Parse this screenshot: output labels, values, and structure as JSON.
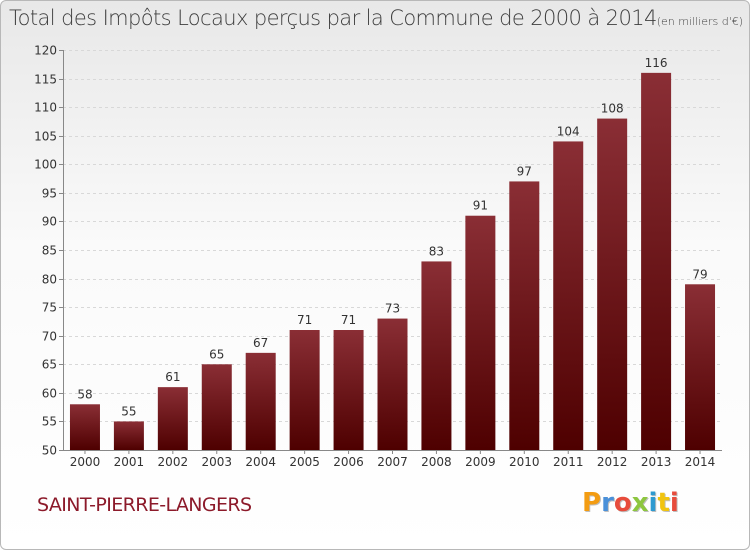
{
  "chart_data": {
    "type": "bar",
    "title": "Total des Impôts Locaux perçus par la Commune de 2000 à 2014",
    "unit_label": "(en milliers d'€)",
    "categories": [
      "2000",
      "2001",
      "2002",
      "2003",
      "2004",
      "2005",
      "2006",
      "2007",
      "2008",
      "2009",
      "2010",
      "2011",
      "2012",
      "2013",
      "2014"
    ],
    "values": [
      58,
      55,
      61,
      65,
      67,
      71,
      71,
      73,
      83,
      91,
      97,
      104,
      108,
      116,
      79
    ],
    "ylim": [
      50,
      120
    ],
    "yticks": [
      50,
      55,
      60,
      65,
      70,
      75,
      80,
      85,
      90,
      95,
      100,
      105,
      110,
      115,
      120
    ],
    "xlabel": "",
    "ylabel": "",
    "grid": true,
    "bar_color_top": "#8a2e35",
    "bar_color_bottom": "#4e0000"
  },
  "commune": "SAINT-PIERRE-LANGERS",
  "logo": {
    "text": "Proxiti"
  }
}
